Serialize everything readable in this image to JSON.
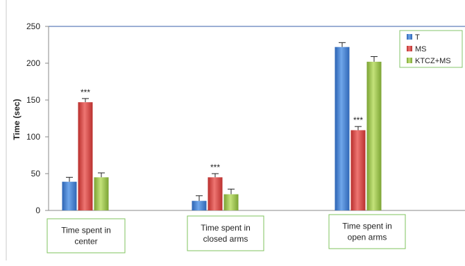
{
  "chart_data": {
    "type": "bar",
    "title": "",
    "xlabel": "",
    "ylabel": "Time (sec)",
    "ylim": [
      0,
      250
    ],
    "yticks": [
      0,
      50,
      100,
      150,
      200,
      250
    ],
    "grid": false,
    "legend_position": "top-right",
    "categories": [
      [
        "Time spent in",
        "center"
      ],
      [
        "Time spent in",
        "closed arms"
      ],
      [
        "Time spent in",
        "open arms"
      ]
    ],
    "series": [
      {
        "name": "T",
        "color": "#4a86d4",
        "values": [
          39,
          13,
          222
        ],
        "errors": [
          6,
          7,
          6
        ],
        "annotations": [
          "",
          "",
          ""
        ]
      },
      {
        "name": "MS",
        "color": "#d64a48",
        "values": [
          147,
          45,
          109
        ],
        "errors": [
          5,
          5,
          5
        ],
        "annotations": [
          "***",
          "***",
          "***"
        ]
      },
      {
        "name": "KTCZ+MS",
        "color": "#9bc34a",
        "values": [
          45,
          22,
          202
        ],
        "errors": [
          6,
          7,
          7
        ],
        "annotations": [
          "",
          "",
          ""
        ]
      }
    ]
  }
}
